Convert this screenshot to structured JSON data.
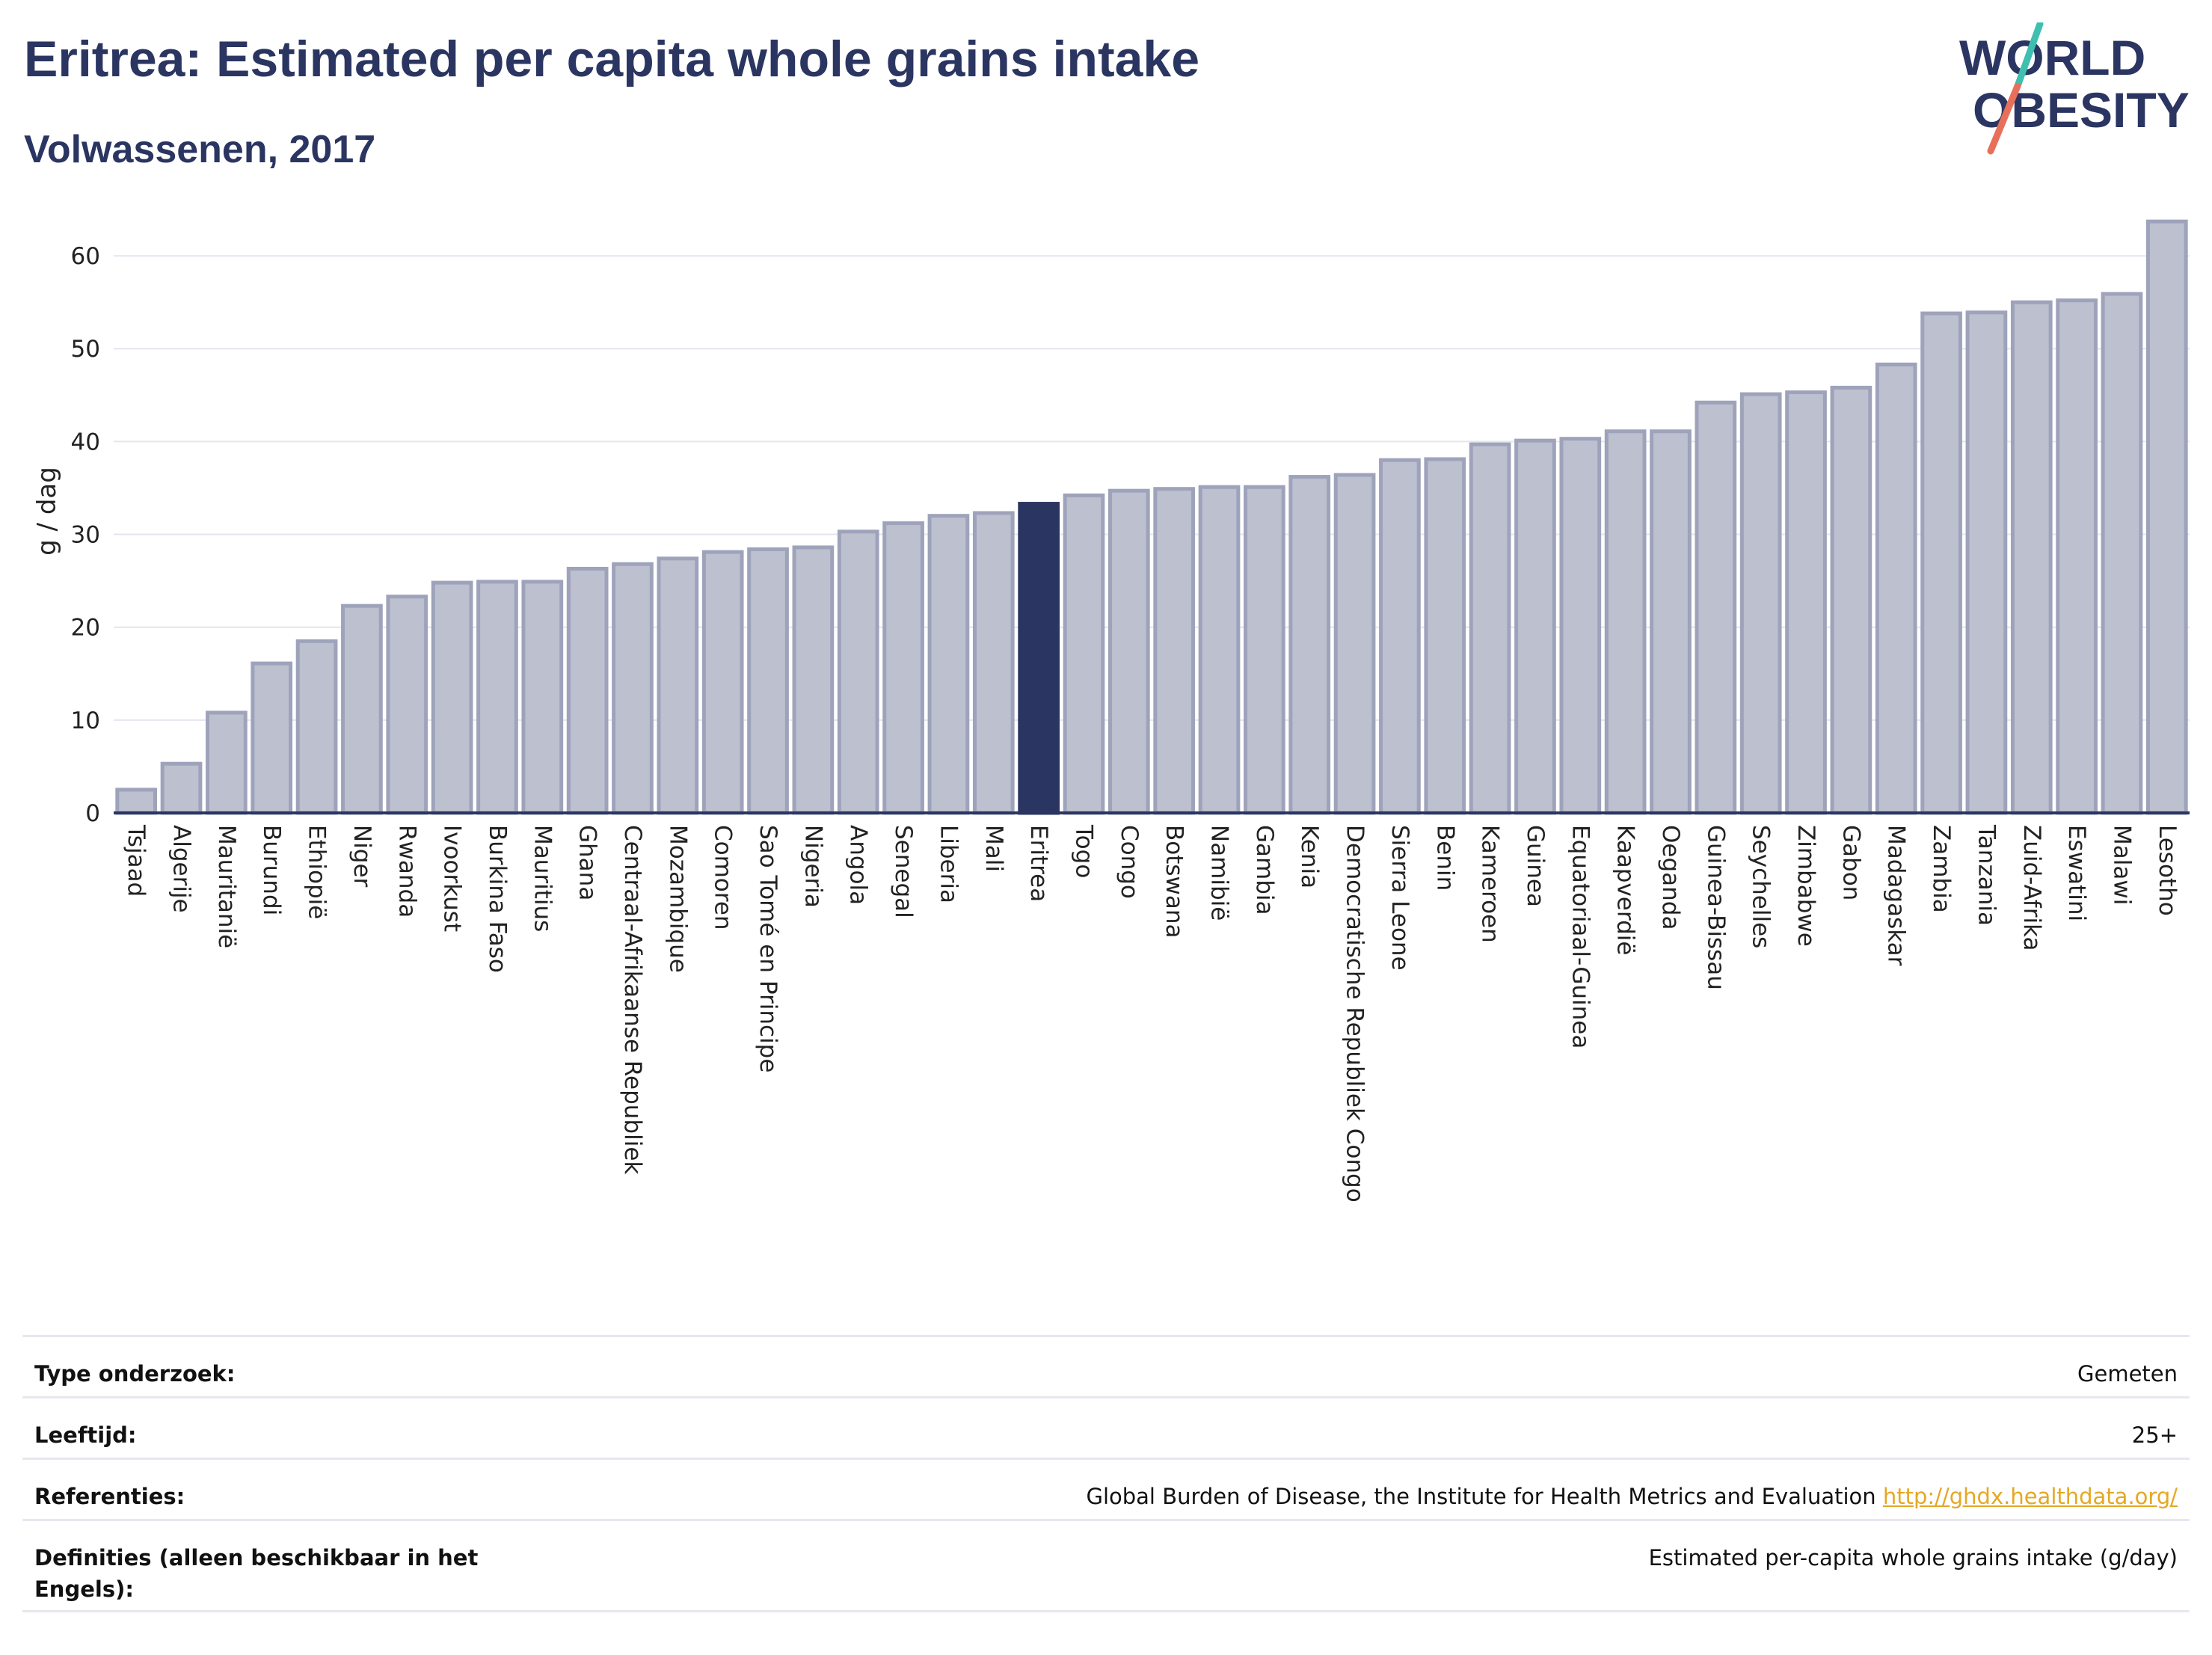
{
  "header": {
    "title": "Eritrea: Estimated per capita whole grains intake",
    "subtitle": "Volwassenen, 2017"
  },
  "logo": {
    "line1": "WORLD",
    "line2": "OBESITY",
    "colors": {
      "text": "#2b3561",
      "slash_top": "#3fbfb0",
      "slash_bottom": "#e8705a"
    }
  },
  "colors": {
    "bar_fill": "#bcc0cf",
    "bar_stroke": "#9ea3bb",
    "highlight": "#2b3561",
    "grid": "#e4e6ee",
    "axis": "#2b3561"
  },
  "chart_data": {
    "type": "bar",
    "ylabel": "g / dag",
    "ylim": [
      0,
      65
    ],
    "yticks": [
      0,
      10,
      20,
      30,
      40,
      50,
      60
    ],
    "grid": true,
    "highlight": "Eritrea",
    "categories": [
      "Tsjaad",
      "Algerije",
      "Mauritanië",
      "Burundi",
      "Ethiopië",
      "Niger",
      "Rwanda",
      "Ivoorkust",
      "Burkina Faso",
      "Mauritius",
      "Ghana",
      "Centraal-Afrikaanse Republiek",
      "Mozambique",
      "Comoren",
      "Sao Tomé en Principe",
      "Nigeria",
      "Angola",
      "Senegal",
      "Liberia",
      "Mali",
      "Eritrea",
      "Togo",
      "Congo",
      "Botswana",
      "Namibië",
      "Gambia",
      "Kenia",
      "Democratische Republiek Congo",
      "Sierra Leone",
      "Benin",
      "Kameroen",
      "Guinea",
      "Equatoriaal-Guinea",
      "Kaapverdië",
      "Oeganda",
      "Guinea-Bissau",
      "Seychelles",
      "Zimbabwe",
      "Gabon",
      "Madagaskar",
      "Zambia",
      "Tanzania",
      "Zuid-Afrika",
      "Eswatini",
      "Malawi",
      "Lesotho"
    ],
    "values": [
      2.5,
      5.3,
      10.8,
      16.1,
      18.5,
      22.3,
      23.3,
      24.8,
      24.9,
      24.9,
      26.3,
      26.8,
      27.4,
      28.1,
      28.4,
      28.6,
      30.3,
      31.2,
      32.0,
      32.3,
      33.3,
      34.2,
      34.7,
      34.9,
      35.1,
      35.1,
      36.2,
      36.4,
      38.0,
      38.1,
      39.7,
      40.1,
      40.3,
      41.1,
      41.1,
      44.2,
      45.1,
      45.3,
      45.8,
      48.3,
      53.8,
      53.9,
      55.0,
      55.2,
      55.9,
      63.7
    ]
  },
  "info_table": [
    {
      "key": "Type onderzoek:",
      "value": "Gemeten",
      "link": ""
    },
    {
      "key": "Leeftijd:",
      "value": "25+",
      "link": ""
    },
    {
      "key": "Referenties:",
      "value": "Global Burden of Disease, the Institute for Health Metrics and Evaluation",
      "link": "http://ghdx.healthdata.org/"
    },
    {
      "key": "Definities (alleen beschikbaar in het Engels):",
      "value": "Estimated per-capita whole grains intake (g/day)",
      "link": ""
    }
  ]
}
